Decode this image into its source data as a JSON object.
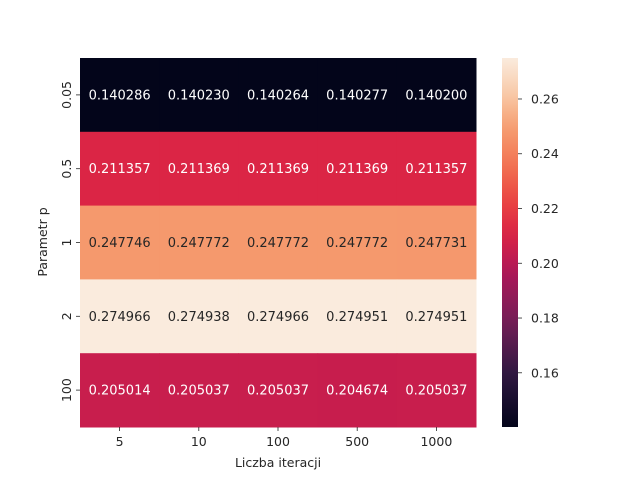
{
  "chart_data": {
    "type": "heatmap",
    "title": "",
    "xlabel": "Liczba iteracji",
    "ylabel": "Parametr p",
    "x_categories": [
      "5",
      "10",
      "100",
      "500",
      "1000"
    ],
    "y_categories": [
      "0.05",
      "0.5",
      "1",
      "2",
      "100"
    ],
    "values": [
      [
        0.140286,
        0.14023,
        0.140264,
        0.140277,
        0.1402
      ],
      [
        0.211357,
        0.211369,
        0.211369,
        0.211369,
        0.211357
      ],
      [
        0.247746,
        0.247772,
        0.247772,
        0.247772,
        0.247731
      ],
      [
        0.274966,
        0.274938,
        0.274966,
        0.274951,
        0.274951
      ],
      [
        0.205014,
        0.205037,
        0.205037,
        0.204674,
        0.205037
      ]
    ],
    "cell_labels": [
      [
        "0.140286",
        "0.140230",
        "0.140264",
        "0.140277",
        "0.140200"
      ],
      [
        "0.211357",
        "0.211369",
        "0.211369",
        "0.211369",
        "0.211357"
      ],
      [
        "0.247746",
        "0.247772",
        "0.247772",
        "0.247772",
        "0.247731"
      ],
      [
        "0.274966",
        "0.274938",
        "0.274966",
        "0.274951",
        "0.274951"
      ],
      [
        "0.205014",
        "0.205037",
        "0.205037",
        "0.204674",
        "0.205037"
      ]
    ],
    "colormap": "rocket",
    "colorbar": {
      "range": [
        0.1402,
        0.27497
      ],
      "ticks": [
        0.16,
        0.18,
        0.2,
        0.22,
        0.24,
        0.26
      ],
      "tick_labels": [
        "0.16",
        "0.18",
        "0.20",
        "0.22",
        "0.24",
        "0.26"
      ]
    }
  }
}
